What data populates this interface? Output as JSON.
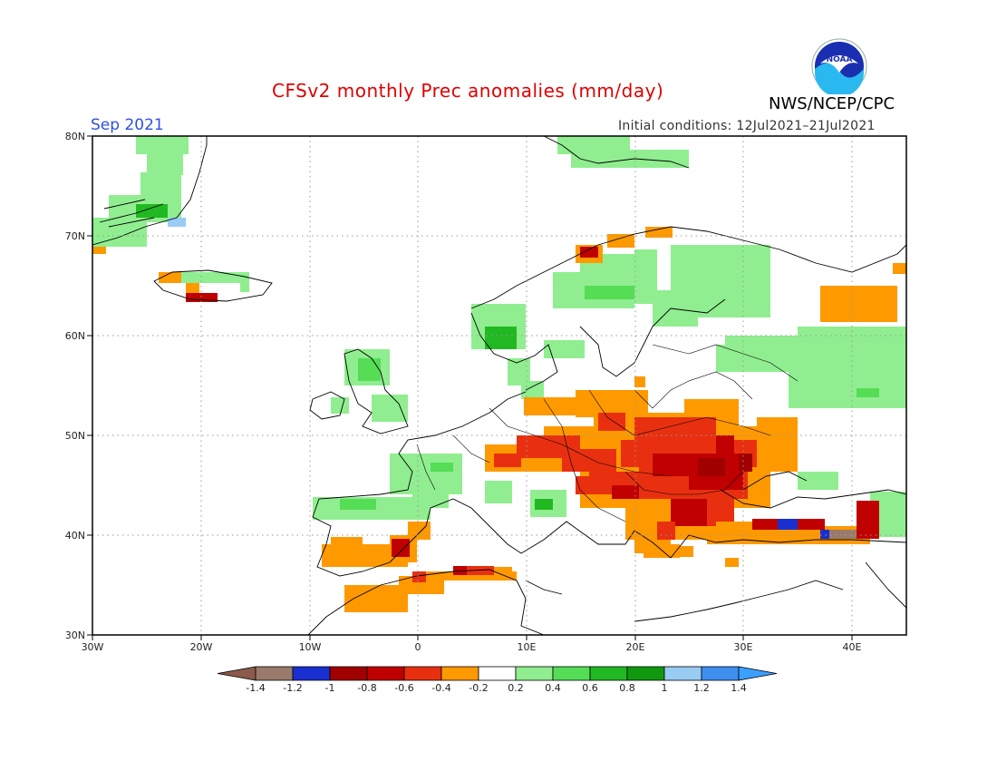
{
  "title": "CFSv2 monthly Prec anomalies (mm/day)",
  "period": "Sep 2021",
  "agency": "NWS/NCEP/CPC",
  "initial_conditions": "Initial conditions: 12Jul2021–21Jul2021",
  "logo": "NOAA",
  "lat_labels": [
    "80N",
    "70N",
    "60N",
    "50N",
    "40N",
    "30N"
  ],
  "lon_labels": [
    "30W",
    "20W",
    "10W",
    "0",
    "10E",
    "20E",
    "30E",
    "40E"
  ],
  "colorbar": {
    "labels": [
      "-1.4",
      "-1.2",
      "-1",
      "-0.8",
      "-0.6",
      "-0.4",
      "-0.2",
      "0.2",
      "0.4",
      "0.6",
      "0.8",
      "1",
      "1.2",
      "1.4"
    ],
    "colors": [
      "#8b5a4a",
      "#9a7a6a",
      "#1a2fd0",
      "#a00000",
      "#c00000",
      "#e83010",
      "#ff9900",
      "#ffffff",
      "#90ee90",
      "#55dd55",
      "#22b822",
      "#109910",
      "#99ccf5",
      "#3e8ef0",
      "#3aa0ff"
    ]
  },
  "map_extent": {
    "lon_min": -30,
    "lon_max": 45,
    "lat_min": 30,
    "lat_max": 80
  },
  "anomaly_regions": [
    {
      "region": "Central and Eastern Europe",
      "level": "-0.6"
    },
    {
      "region": "Romania and Ukraine",
      "level": "-0.8"
    },
    {
      "region": "Northern Turkey",
      "level": "-0.8"
    },
    {
      "region": "Iberia",
      "level": "-0.4"
    },
    {
      "region": "North Africa",
      "level": "-0.4"
    },
    {
      "region": "Scandinavia",
      "level": "0.4"
    },
    {
      "region": "Western Russia",
      "level": "0.4"
    },
    {
      "region": "British Isles",
      "level": "0.4"
    },
    {
      "region": "Greenland",
      "level": "0.4"
    }
  ]
}
